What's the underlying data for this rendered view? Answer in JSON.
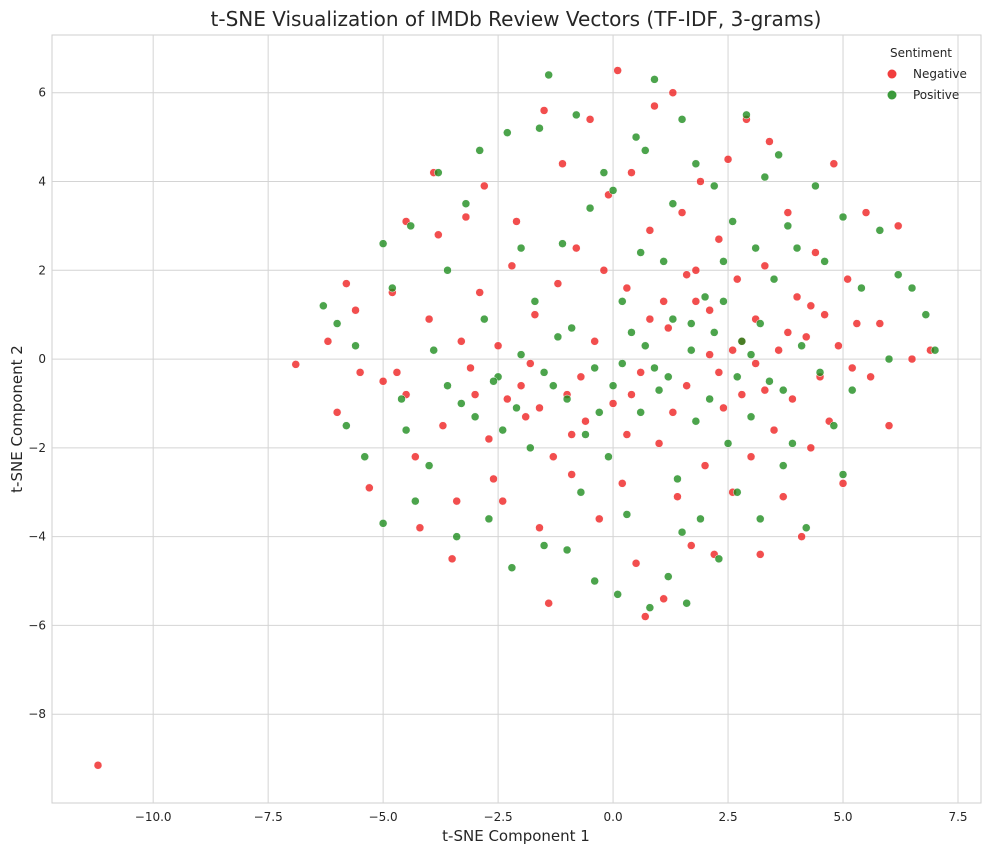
{
  "chart_data": {
    "type": "scatter",
    "title": "t-SNE Visualization of IMDb Review Vectors (TF-IDF, 3-grams)",
    "xlabel": "t-SNE Component 1",
    "ylabel": "t-SNE Component 2",
    "xlim": [
      -12.2,
      8.0
    ],
    "ylim": [
      -10.0,
      7.3
    ],
    "xticks": [
      -10.0,
      -7.5,
      -5.0,
      -2.5,
      0.0,
      2.5,
      5.0,
      7.5
    ],
    "xtick_labels": [
      "−10.0",
      "−7.5",
      "−5.0",
      "−2.5",
      "0.0",
      "2.5",
      "5.0",
      "7.5"
    ],
    "yticks": [
      -8,
      -6,
      -4,
      -2,
      0,
      2,
      4,
      6
    ],
    "ytick_labels": [
      "−8",
      "−6",
      "−4",
      "−2",
      "0",
      "2",
      "4",
      "6"
    ],
    "grid": true,
    "legend": {
      "title": "Sentiment",
      "placement": "top-right",
      "entries": [
        "Negative",
        "Positive"
      ]
    },
    "series": [
      {
        "name": "Negative",
        "color": "#ee1c1c",
        "points": [
          [
            -11.2,
            -9.15
          ],
          [
            -6.9,
            -0.12
          ],
          [
            -6.2,
            0.4
          ],
          [
            -6.0,
            -1.2
          ],
          [
            -5.8,
            1.7
          ],
          [
            -5.6,
            1.1
          ],
          [
            -5.5,
            -0.3
          ],
          [
            -5.3,
            -2.9
          ],
          [
            -5.0,
            -0.5
          ],
          [
            -4.7,
            -0.3
          ],
          [
            -4.5,
            3.1
          ],
          [
            -4.5,
            -0.8
          ],
          [
            -4.2,
            -3.8
          ],
          [
            -4.0,
            0.9
          ],
          [
            -3.9,
            4.2
          ],
          [
            -3.7,
            -1.5
          ],
          [
            -3.5,
            -4.5
          ],
          [
            -3.3,
            0.4
          ],
          [
            -3.2,
            3.2
          ],
          [
            -3.0,
            -0.8
          ],
          [
            -2.8,
            3.9
          ],
          [
            -2.7,
            -1.8
          ],
          [
            -2.5,
            0.3
          ],
          [
            -2.4,
            -3.2
          ],
          [
            -2.2,
            2.1
          ],
          [
            -2.0,
            -0.6
          ],
          [
            -1.9,
            -1.3
          ],
          [
            -1.7,
            1.0
          ],
          [
            -1.5,
            5.6
          ],
          [
            -1.4,
            -5.5
          ],
          [
            -1.3,
            -2.2
          ],
          [
            -1.1,
            4.4
          ],
          [
            -1.0,
            -0.8
          ],
          [
            -0.9,
            -2.6
          ],
          [
            -0.8,
            2.5
          ],
          [
            -0.6,
            -1.4
          ],
          [
            -0.5,
            5.4
          ],
          [
            -0.4,
            0.4
          ],
          [
            -0.3,
            -3.6
          ],
          [
            -0.1,
            3.7
          ],
          [
            0.0,
            -1.0
          ],
          [
            0.1,
            6.5
          ],
          [
            0.2,
            -2.8
          ],
          [
            0.3,
            1.6
          ],
          [
            0.4,
            4.2
          ],
          [
            0.5,
            -4.6
          ],
          [
            0.6,
            -0.3
          ],
          [
            0.7,
            -5.8
          ],
          [
            0.8,
            2.9
          ],
          [
            0.9,
            5.7
          ],
          [
            1.0,
            -1.9
          ],
          [
            1.1,
            -5.4
          ],
          [
            1.2,
            0.7
          ],
          [
            1.3,
            6.0
          ],
          [
            1.4,
            -3.1
          ],
          [
            1.5,
            3.3
          ],
          [
            1.6,
            -0.6
          ],
          [
            1.7,
            -4.2
          ],
          [
            1.8,
            1.3
          ],
          [
            1.9,
            4.0
          ],
          [
            2.0,
            -2.4
          ],
          [
            2.1,
            0.1
          ],
          [
            2.2,
            -4.4
          ],
          [
            2.3,
            2.7
          ],
          [
            2.4,
            -1.1
          ],
          [
            2.5,
            4.5
          ],
          [
            2.6,
            -3.0
          ],
          [
            2.7,
            1.8
          ],
          [
            2.8,
            -0.8
          ],
          [
            2.9,
            5.4
          ],
          [
            3.0,
            -2.2
          ],
          [
            3.1,
            0.9
          ],
          [
            3.2,
            -4.4
          ],
          [
            3.3,
            2.1
          ],
          [
            3.4,
            4.9
          ],
          [
            3.5,
            -1.6
          ],
          [
            3.6,
            0.2
          ],
          [
            3.7,
            -3.1
          ],
          [
            3.8,
            3.3
          ],
          [
            3.9,
            -0.9
          ],
          [
            4.0,
            1.4
          ],
          [
            4.1,
            -4.0
          ],
          [
            4.2,
            0.5
          ],
          [
            4.3,
            -2.0
          ],
          [
            4.4,
            2.4
          ],
          [
            4.5,
            -0.4
          ],
          [
            4.6,
            1.0
          ],
          [
            4.7,
            -1.4
          ],
          [
            4.8,
            4.4
          ],
          [
            4.9,
            0.3
          ],
          [
            5.0,
            -2.8
          ],
          [
            5.1,
            1.8
          ],
          [
            5.2,
            -0.2
          ],
          [
            5.3,
            0.8
          ],
          [
            5.5,
            3.3
          ],
          [
            5.6,
            -0.4
          ],
          [
            5.8,
            0.8
          ],
          [
            6.0,
            -1.5
          ],
          [
            6.2,
            3.0
          ],
          [
            6.5,
            0.0
          ],
          [
            6.9,
            0.2
          ],
          [
            -4.8,
            1.5
          ],
          [
            -4.3,
            -2.2
          ],
          [
            -3.8,
            2.8
          ],
          [
            -3.4,
            -3.2
          ],
          [
            -2.9,
            1.5
          ],
          [
            -2.6,
            -2.7
          ],
          [
            -2.1,
            3.1
          ],
          [
            -1.8,
            -0.1
          ],
          [
            -1.6,
            -3.8
          ],
          [
            -1.2,
            1.7
          ],
          [
            -0.7,
            -0.4
          ],
          [
            -0.2,
            2.0
          ],
          [
            0.3,
            -1.7
          ],
          [
            0.8,
            0.9
          ],
          [
            1.3,
            -1.2
          ],
          [
            1.8,
            2.0
          ],
          [
            2.3,
            -0.3
          ],
          [
            2.8,
            0.4
          ],
          [
            3.3,
            -0.7
          ],
          [
            3.8,
            0.6
          ],
          [
            4.3,
            1.2
          ],
          [
            -3.1,
            -0.2
          ],
          [
            -2.3,
            -0.9
          ],
          [
            -1.6,
            -1.1
          ],
          [
            -0.9,
            -1.7
          ],
          [
            0.4,
            -0.8
          ],
          [
            1.1,
            1.3
          ],
          [
            1.6,
            1.9
          ],
          [
            2.1,
            1.1
          ],
          [
            2.6,
            0.2
          ],
          [
            3.1,
            -0.1
          ]
        ]
      },
      {
        "name": "Positive",
        "color": "#1a8a1a",
        "points": [
          [
            -6.3,
            1.2
          ],
          [
            -6.0,
            0.8
          ],
          [
            -5.8,
            -1.5
          ],
          [
            -5.6,
            0.3
          ],
          [
            -5.4,
            -2.2
          ],
          [
            -5.0,
            2.6
          ],
          [
            -5.0,
            -3.7
          ],
          [
            -4.8,
            1.6
          ],
          [
            -4.6,
            -0.9
          ],
          [
            -4.4,
            3.0
          ],
          [
            -4.3,
            -3.2
          ],
          [
            -4.0,
            -2.4
          ],
          [
            -3.8,
            4.2
          ],
          [
            -3.6,
            2.0
          ],
          [
            -3.4,
            -4.0
          ],
          [
            -3.2,
            3.5
          ],
          [
            -3.0,
            -1.3
          ],
          [
            -2.9,
            4.7
          ],
          [
            -2.7,
            -3.6
          ],
          [
            -2.5,
            -0.4
          ],
          [
            -2.3,
            5.1
          ],
          [
            -2.2,
            -4.7
          ],
          [
            -2.0,
            2.5
          ],
          [
            -1.8,
            -2.0
          ],
          [
            -1.6,
            5.2
          ],
          [
            -1.5,
            -4.2
          ],
          [
            -1.4,
            6.4
          ],
          [
            -1.2,
            0.5
          ],
          [
            -1.0,
            -4.3
          ],
          [
            -0.8,
            5.5
          ],
          [
            -0.6,
            -1.7
          ],
          [
            -0.5,
            3.4
          ],
          [
            -0.4,
            -5.0
          ],
          [
            -0.2,
            4.2
          ],
          [
            -0.1,
            -2.2
          ],
          [
            0.0,
            3.8
          ],
          [
            0.1,
            -5.3
          ],
          [
            0.2,
            1.3
          ],
          [
            0.3,
            -3.5
          ],
          [
            0.5,
            5.0
          ],
          [
            0.6,
            -1.2
          ],
          [
            0.7,
            4.7
          ],
          [
            0.8,
            -5.6
          ],
          [
            0.9,
            6.3
          ],
          [
            1.0,
            -0.7
          ],
          [
            1.1,
            2.2
          ],
          [
            1.2,
            -4.9
          ],
          [
            1.3,
            3.5
          ],
          [
            1.4,
            -2.7
          ],
          [
            1.5,
            5.4
          ],
          [
            1.6,
            -5.5
          ],
          [
            1.7,
            0.2
          ],
          [
            1.8,
            4.4
          ],
          [
            1.9,
            -3.6
          ],
          [
            2.0,
            1.4
          ],
          [
            2.1,
            -0.9
          ],
          [
            2.2,
            3.9
          ],
          [
            2.3,
            -4.5
          ],
          [
            2.4,
            2.2
          ],
          [
            2.5,
            -1.9
          ],
          [
            2.6,
            3.1
          ],
          [
            2.7,
            -3.0
          ],
          [
            2.8,
            0.4
          ],
          [
            2.9,
            5.5
          ],
          [
            3.0,
            -1.3
          ],
          [
            3.1,
            2.5
          ],
          [
            3.2,
            -3.6
          ],
          [
            3.3,
            4.1
          ],
          [
            3.4,
            -0.5
          ],
          [
            3.5,
            1.8
          ],
          [
            3.6,
            4.6
          ],
          [
            3.7,
            -2.4
          ],
          [
            3.8,
            3.0
          ],
          [
            3.9,
            -1.9
          ],
          [
            4.0,
            2.5
          ],
          [
            4.2,
            -3.8
          ],
          [
            4.4,
            3.9
          ],
          [
            4.5,
            -0.3
          ],
          [
            4.6,
            2.2
          ],
          [
            4.8,
            -1.5
          ],
          [
            5.0,
            3.2
          ],
          [
            5.0,
            -2.6
          ],
          [
            5.2,
            -0.7
          ],
          [
            5.4,
            1.6
          ],
          [
            5.8,
            2.9
          ],
          [
            6.0,
            0.0
          ],
          [
            6.2,
            1.9
          ],
          [
            6.5,
            1.6
          ],
          [
            6.8,
            1.0
          ],
          [
            7.0,
            0.2
          ],
          [
            -4.5,
            -1.6
          ],
          [
            -3.9,
            0.2
          ],
          [
            -3.3,
            -1.0
          ],
          [
            -2.8,
            0.9
          ],
          [
            -2.4,
            -1.6
          ],
          [
            -2.0,
            0.1
          ],
          [
            -1.7,
            1.3
          ],
          [
            -1.3,
            -0.6
          ],
          [
            -0.9,
            0.7
          ],
          [
            -0.4,
            -0.2
          ],
          [
            0.0,
            -0.6
          ],
          [
            0.4,
            0.6
          ],
          [
            0.9,
            -0.2
          ],
          [
            1.3,
            0.9
          ],
          [
            1.8,
            -1.4
          ],
          [
            2.2,
            0.6
          ],
          [
            2.7,
            -0.4
          ],
          [
            3.2,
            0.8
          ],
          [
            3.7,
            -0.7
          ],
          [
            4.1,
            0.3
          ],
          [
            -2.6,
            -0.5
          ],
          [
            -2.1,
            -1.1
          ],
          [
            -1.5,
            -0.3
          ],
          [
            -1.0,
            -0.9
          ],
          [
            -0.3,
            -1.2
          ],
          [
            0.2,
            -0.1
          ],
          [
            0.7,
            0.3
          ],
          [
            1.2,
            -0.4
          ],
          [
            1.7,
            0.8
          ],
          [
            2.4,
            1.3
          ],
          [
            3.0,
            0.1
          ],
          [
            -3.6,
            -0.6
          ],
          [
            -1.1,
            2.6
          ],
          [
            0.6,
            2.4
          ],
          [
            -0.7,
            -3.0
          ],
          [
            1.5,
            -3.9
          ]
        ]
      }
    ]
  }
}
